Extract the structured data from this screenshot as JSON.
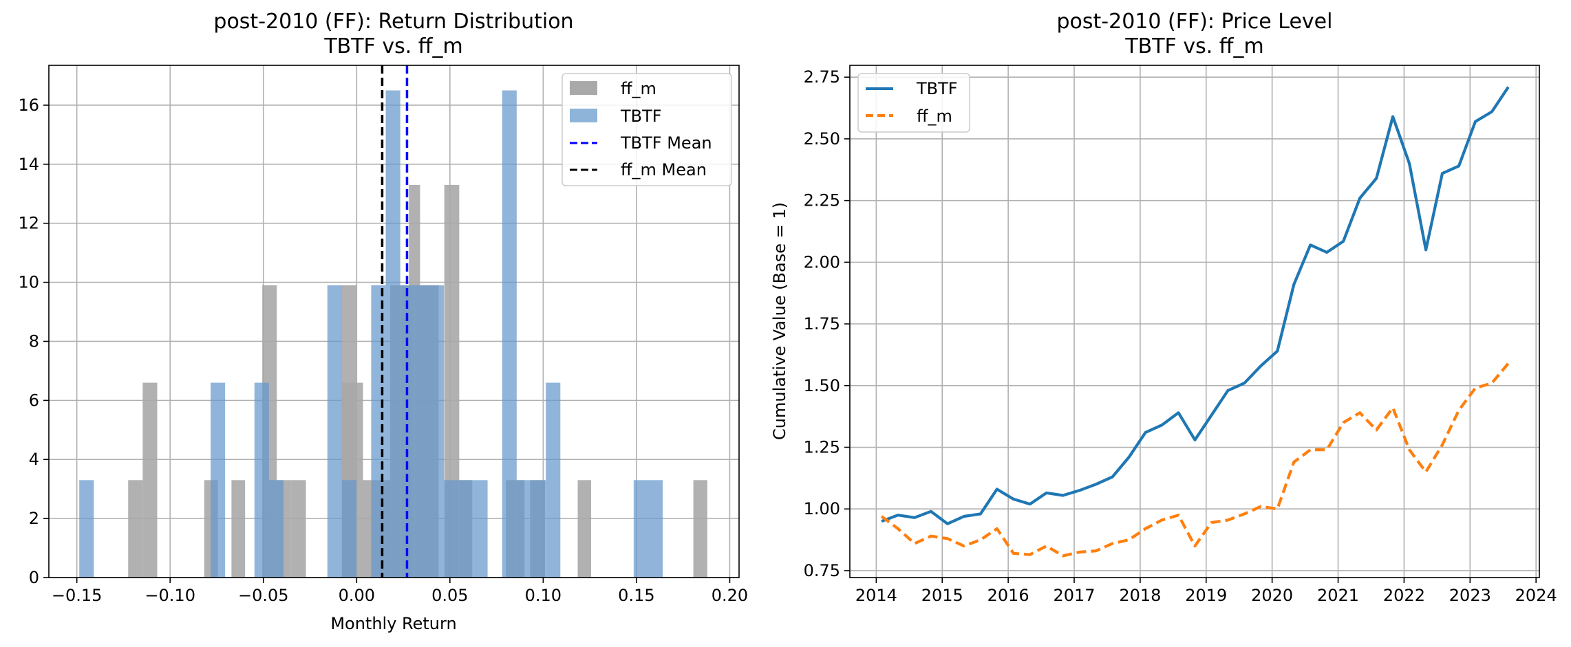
{
  "chart_data": [
    {
      "type": "histogram",
      "title_line1": "post-2010 (FF): Return Distribution",
      "title_line2": "TBTF vs. ff_m",
      "xlabel": "Monthly Return",
      "ylabel": "",
      "xlim": [
        -0.165,
        0.205
      ],
      "ylim": [
        0,
        17.35
      ],
      "xticks": [
        -0.15,
        -0.1,
        -0.05,
        0.0,
        0.05,
        0.1,
        0.15,
        0.2
      ],
      "xtick_labels": [
        "−0.15",
        "−0.10",
        "−0.05",
        "0.00",
        "0.05",
        "0.10",
        "0.15",
        "0.20"
      ],
      "yticks": [
        0,
        2,
        4,
        6,
        8,
        10,
        12,
        14,
        16
      ],
      "ytick_labels": [
        "0",
        "2",
        "4",
        "6",
        "8",
        "10",
        "12",
        "14",
        "16"
      ],
      "grid": true,
      "legend_position": "top-right",
      "series": [
        {
          "name": "ff_m",
          "color": "#a9a9a9",
          "opacity": 0.9,
          "bins": [
            [
              -0.1225,
              -0.1147,
              3.3
            ],
            [
              -0.1147,
              -0.1069,
              6.6
            ],
            [
              -0.0817,
              -0.0744,
              3.3
            ],
            [
              -0.0671,
              -0.0598,
              3.3
            ],
            [
              -0.0506,
              -0.0428,
              9.9
            ],
            [
              -0.0428,
              -0.035,
              3.3
            ],
            [
              -0.035,
              -0.0272,
              3.3
            ],
            [
              -0.008,
              -0.0002,
              9.9
            ],
            [
              -0.0079,
              0.0034,
              6.6
            ],
            [
              0.0034,
              0.011,
              3.3
            ],
            [
              0.011,
              0.018,
              3.3
            ],
            [
              0.018,
              0.029,
              9.9
            ],
            [
              0.028,
              0.034,
              13.3
            ],
            [
              0.034,
              0.044,
              9.9
            ],
            [
              0.047,
              0.055,
              13.3
            ],
            [
              0.055,
              0.062,
              3.3
            ],
            [
              0.08,
              0.09,
              3.3
            ],
            [
              0.093,
              0.101,
              3.3
            ],
            [
              0.1185,
              0.1257,
              3.3
            ],
            [
              0.1805,
              0.188,
              3.3
            ]
          ]
        },
        {
          "name": "TBTF",
          "color": "#6699cc",
          "opacity": 0.72,
          "bins": [
            [
              -0.1487,
              -0.1409,
              3.3
            ],
            [
              -0.0783,
              -0.0705,
              6.6
            ],
            [
              -0.0548,
              -0.047,
              6.6
            ],
            [
              -0.047,
              -0.0392,
              3.3
            ],
            [
              -0.0157,
              -0.0079,
              9.9
            ],
            [
              -0.0079,
              -0.0001,
              3.3
            ],
            [
              0.0078,
              0.0156,
              9.9
            ],
            [
              0.0156,
              0.0234,
              16.5
            ],
            [
              0.0234,
              0.0312,
              9.9
            ],
            [
              0.0312,
              0.039,
              9.9
            ],
            [
              0.039,
              0.0468,
              9.9
            ],
            [
              0.0468,
              0.0546,
              3.3
            ],
            [
              0.0546,
              0.0624,
              3.3
            ],
            [
              0.0624,
              0.0702,
              3.3
            ],
            [
              0.078,
              0.0858,
              16.5
            ],
            [
              0.0858,
              0.0936,
              3.3
            ],
            [
              0.0936,
              0.1014,
              3.3
            ],
            [
              0.1014,
              0.1092,
              6.6
            ],
            [
              0.1485,
              0.1563,
              3.3
            ],
            [
              0.1563,
              0.1641,
              3.3
            ]
          ]
        }
      ],
      "mean_lines": [
        {
          "name": "TBTF Mean",
          "value": 0.027,
          "color": "#0000ff"
        },
        {
          "name": "ff_m Mean",
          "value": 0.0137,
          "color": "#000000"
        }
      ],
      "legend": [
        {
          "label": "ff_m",
          "kind": "patch",
          "color": "#a9a9a9"
        },
        {
          "label": "TBTF",
          "kind": "patch",
          "color": "#8fb4d9"
        },
        {
          "label": "TBTF Mean",
          "kind": "dashed",
          "color": "#0000ff"
        },
        {
          "label": "ff_m Mean",
          "kind": "dashed",
          "color": "#000000"
        }
      ]
    },
    {
      "type": "line",
      "title_line1": "post-2010 (FF): Price Level",
      "title_line2": "TBTF vs. ff_m",
      "xlabel": "",
      "ylabel": "Cumulative Value (Base = 1)",
      "xlim": [
        2013.6,
        2024.05
      ],
      "ylim": [
        0.722,
        2.798
      ],
      "xticks": [
        2014,
        2015,
        2016,
        2017,
        2018,
        2019,
        2020,
        2021,
        2022,
        2023,
        2024
      ],
      "xtick_labels": [
        "2014",
        "2015",
        "2016",
        "2017",
        "2018",
        "2019",
        "2020",
        "2021",
        "2022",
        "2023",
        "2024"
      ],
      "yticks": [
        0.75,
        1.0,
        1.25,
        1.5,
        1.75,
        2.0,
        2.25,
        2.5,
        2.75
      ],
      "ytick_labels": [
        "0.75",
        "1.00",
        "1.25",
        "1.50",
        "1.75",
        "2.00",
        "2.25",
        "2.50",
        "2.75"
      ],
      "grid": true,
      "legend_position": "top-left",
      "x": [
        2014.08,
        2014.33,
        2014.58,
        2014.83,
        2015.08,
        2015.33,
        2015.58,
        2015.83,
        2016.08,
        2016.33,
        2016.58,
        2016.83,
        2017.08,
        2017.33,
        2017.58,
        2017.83,
        2018.08,
        2018.33,
        2018.58,
        2018.83,
        2019.08,
        2019.33,
        2019.58,
        2019.83,
        2020.08,
        2020.33,
        2020.58,
        2020.83,
        2021.08,
        2021.33,
        2021.58,
        2021.83,
        2022.08,
        2022.33,
        2022.58,
        2022.83,
        2023.08,
        2023.33,
        2023.58
      ],
      "series": [
        {
          "name": "TBTF",
          "color": "#1f77b4",
          "style": "solid",
          "values": [
            0.95,
            0.975,
            0.965,
            0.99,
            0.94,
            0.97,
            0.98,
            1.08,
            1.04,
            1.02,
            1.065,
            1.055,
            1.075,
            1.1,
            1.13,
            1.21,
            1.31,
            1.34,
            1.39,
            1.28,
            1.38,
            1.48,
            1.51,
            1.58,
            1.64,
            1.91,
            2.07,
            2.04,
            2.085,
            2.26,
            2.34,
            2.59,
            2.4,
            2.05,
            2.36,
            2.39,
            2.57,
            2.61,
            2.71
          ]
        },
        {
          "name": "ff_m",
          "color": "#ff7f0e",
          "style": "dashed",
          "values": [
            0.97,
            0.92,
            0.86,
            0.89,
            0.88,
            0.85,
            0.875,
            0.92,
            0.82,
            0.815,
            0.85,
            0.81,
            0.825,
            0.83,
            0.86,
            0.875,
            0.92,
            0.955,
            0.975,
            0.85,
            0.945,
            0.955,
            0.98,
            1.01,
            1.0,
            1.19,
            1.24,
            1.24,
            1.35,
            1.39,
            1.32,
            1.41,
            1.24,
            1.15,
            1.26,
            1.4,
            1.49,
            1.51,
            1.59
          ]
        }
      ],
      "legend": [
        {
          "label": "TBTF",
          "kind": "solid",
          "color": "#1f77b4"
        },
        {
          "label": "ff_m",
          "kind": "dashed",
          "color": "#ff7f0e"
        }
      ]
    }
  ]
}
